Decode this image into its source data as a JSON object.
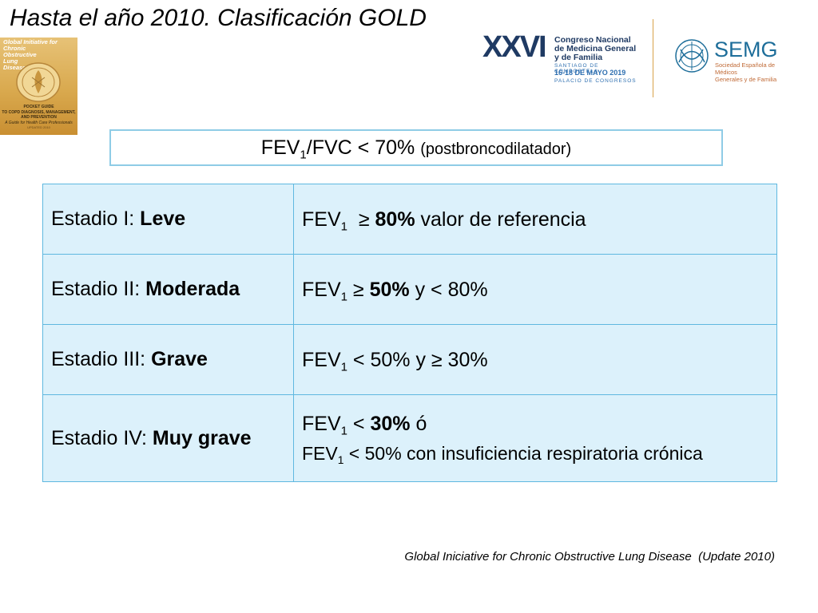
{
  "slide": {
    "title": "Hasta el año 2010. Clasificación GOLD"
  },
  "cover": {
    "title_lines": [
      "Global Initiative for Chronic",
      "Obstructive",
      "Lung",
      "Disease"
    ],
    "subtitle_lines": [
      "POCKET GUIDE",
      "TO COPD DIAGNOSIS, MANAGEMENT,",
      "AND PREVENTION",
      "A Guide for Health Care Professionals"
    ],
    "tagline": "UPDATED 2010",
    "colors": {
      "background": "#d9a94e",
      "text": "#ffffff"
    }
  },
  "congress_logo": {
    "numeral": "XXVI",
    "name_lines": [
      "Congreso Nacional",
      "de Medicina General",
      "y de Familia"
    ],
    "location": "SANTIAGO DE COMPOSTELA",
    "dates": "16-18 DE MAYO 2019",
    "venue": "PALACIO DE CONGRESOS",
    "colors": {
      "navy": "#1f3a63",
      "sun": "#f5b815",
      "blue": "#2e78c0"
    }
  },
  "semg_logo": {
    "name": "SEMG",
    "sub_lines": [
      "Sociedad Española de Médicos",
      "Generales y de Familia"
    ],
    "colors": {
      "name": "#1e6e9a",
      "sub": "#c06a36"
    }
  },
  "criteria": {
    "prefix": "FEV",
    "sub1": "1",
    "mid": "/FVC < 70% ",
    "note": "(postbroncodilatador)"
  },
  "stages": [
    {
      "label": "Estadio I: ",
      "severity": "Leve",
      "lines": [
        {
          "a": "FEV",
          "s": "1",
          "b": "  ≥ ",
          "bold": "80%",
          "c": " valor de referencia"
        }
      ]
    },
    {
      "label": "Estadio II: ",
      "severity": "Moderada",
      "lines": [
        {
          "a": "FEV",
          "s": "1",
          "b": " ≥ ",
          "bold": "50%",
          "c": " y < 80%"
        }
      ]
    },
    {
      "label": "Estadio III: ",
      "severity": "Grave",
      "lines": [
        {
          "a": "FEV",
          "s": "1",
          "b": " < 50% y ≥ 30%",
          "bold": "",
          "c": ""
        }
      ]
    },
    {
      "label": "Estadio IV: ",
      "severity": "Muy grave",
      "lines": [
        {
          "a": "FEV",
          "s": "1",
          "b": " < ",
          "bold": "30%",
          "c": " ó"
        },
        {
          "a": "FEV",
          "s": "1",
          "b": " < 50% con insuficiencia respiratoria crónica",
          "bold": "",
          "c": ""
        }
      ]
    }
  ],
  "footnote": "Global Iniciative for Chronic Obstructive Lung Disease  (Update 2010)",
  "colors": {
    "table_fill": "#dcf1fb",
    "table_border": "#5fb8e0",
    "criteria_border": "#8fcce6"
  }
}
